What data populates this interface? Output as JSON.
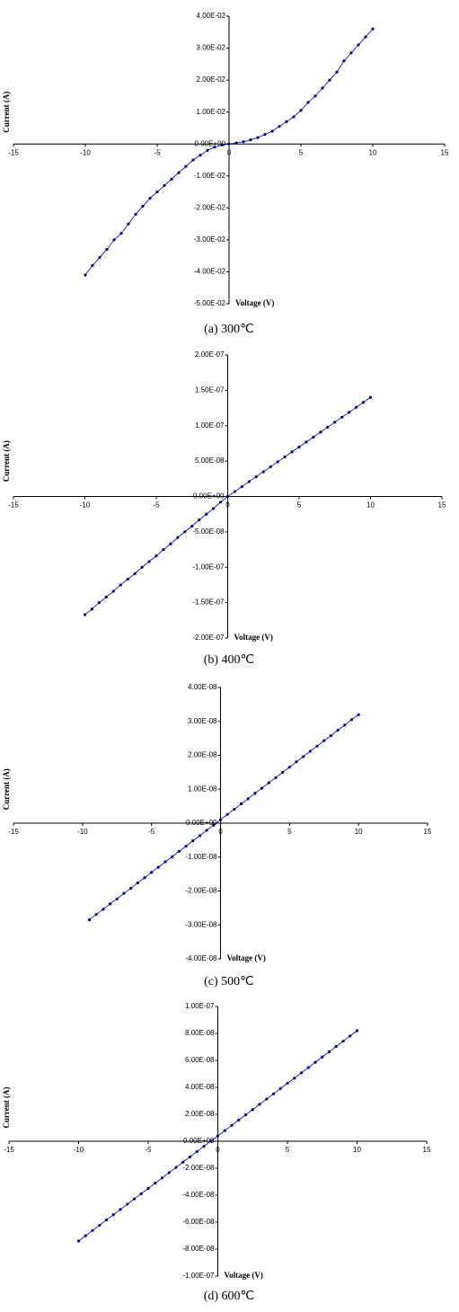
{
  "chart_data": [
    {
      "type": "line",
      "caption": "(a) 300℃",
      "xlabel": "Voltage (V)",
      "ylabel": "Current (A)",
      "color": "#000080",
      "xlim": [
        -15,
        15
      ],
      "ylim": [
        -0.05,
        0.04
      ],
      "xticks": [
        -15,
        -10,
        -5,
        0,
        5,
        10,
        15
      ],
      "yticks": [
        {
          "value": 0.04,
          "label": "4.00E-02"
        },
        {
          "value": 0.03,
          "label": "3.00E-02"
        },
        {
          "value": 0.02,
          "label": "2.00E-02"
        },
        {
          "value": 0.01,
          "label": "1.00E-02"
        },
        {
          "value": 0,
          "label": "0.00E+00"
        },
        {
          "value": -0.01,
          "label": "-1.00E-02"
        },
        {
          "value": -0.02,
          "label": "-2.00E-02"
        },
        {
          "value": -0.03,
          "label": "-3.00E-02"
        },
        {
          "value": -0.04,
          "label": "-4.00E-02"
        },
        {
          "value": -0.05,
          "label": "-5.00E-02"
        }
      ],
      "x": [
        -10,
        -9.5,
        -9,
        -8.5,
        -8,
        -7.5,
        -7,
        -6.5,
        -6,
        -5.5,
        -5,
        -4.5,
        -4,
        -3.5,
        -3,
        -2.5,
        -2,
        -1.5,
        -1,
        -0.5,
        0,
        0.5,
        1,
        1.5,
        2,
        2.5,
        3,
        3.5,
        4,
        4.5,
        5,
        5.5,
        6,
        6.5,
        7,
        7.5,
        8,
        8.5,
        9,
        9.5,
        10
      ],
      "values": [
        -0.041,
        -0.038,
        -0.0355,
        -0.033,
        -0.03,
        -0.028,
        -0.025,
        -0.022,
        -0.0195,
        -0.017,
        -0.015,
        -0.013,
        -0.011,
        -0.009,
        -0.007,
        -0.005,
        -0.0035,
        -0.002,
        -0.001,
        -0.0003,
        0,
        0.0003,
        0.0007,
        0.0013,
        0.002,
        0.003,
        0.004,
        0.0055,
        0.007,
        0.0085,
        0.0105,
        0.013,
        0.015,
        0.0175,
        0.02,
        0.0225,
        0.026,
        0.0285,
        0.031,
        0.0335,
        0.036
      ]
    },
    {
      "type": "line",
      "caption": "(b) 400℃",
      "xlabel": "Voltage (V)",
      "ylabel": "Current (A)",
      "color": "#000080",
      "xlim": [
        -15,
        15
      ],
      "ylim": [
        -2e-07,
        2e-07
      ],
      "xticks": [
        -15,
        -10,
        -5,
        0,
        5,
        10,
        15
      ],
      "yticks": [
        {
          "value": 2e-07,
          "label": "2.00E-07"
        },
        {
          "value": 1.5e-07,
          "label": "1.50E-07"
        },
        {
          "value": 1e-07,
          "label": "1.00E-07"
        },
        {
          "value": 5e-08,
          "label": "5.00E-08"
        },
        {
          "value": 0,
          "label": "0.00E+00"
        },
        {
          "value": -5e-08,
          "label": "-5.00E-08"
        },
        {
          "value": -1e-07,
          "label": "-1.00E-07"
        },
        {
          "value": -1.5e-07,
          "label": "-1.50E-07"
        },
        {
          "value": -2e-07,
          "label": "-2.00E-07"
        }
      ],
      "x": [
        -10,
        -9.5,
        -9,
        -8.5,
        -8,
        -7.5,
        -7,
        -6.5,
        -6,
        -5.5,
        -5,
        -4.5,
        -4,
        -3.5,
        -3,
        -2.5,
        -2,
        -1.5,
        -1,
        -0.5,
        0,
        0.5,
        1,
        1.5,
        2,
        2.5,
        3,
        3.5,
        4,
        4.5,
        5,
        5.5,
        6,
        6.5,
        7,
        7.5,
        8,
        8.5,
        9,
        9.5,
        10
      ],
      "values": [
        -1.67e-07,
        -1.59e-07,
        -1.5e-07,
        -1.42e-07,
        -1.34e-07,
        -1.25e-07,
        -1.17e-07,
        -1.09e-07,
        -1e-07,
        -9.2e-08,
        -8.4e-08,
        -7.5e-08,
        -6.7e-08,
        -5.8e-08,
        -5e-08,
        -4.2e-08,
        -3.3e-08,
        -2.5e-08,
        -1.7e-08,
        -8e-09,
        0,
        7e-09,
        1.4e-08,
        2.1e-08,
        2.8e-08,
        3.5e-08,
        4.2e-08,
        4.9e-08,
        5.6e-08,
        6.3e-08,
        7e-08,
        7.7e-08,
        8.4e-08,
        9.1e-08,
        9.8e-08,
        1.05e-07,
        1.12e-07,
        1.19e-07,
        1.26e-07,
        1.33e-07,
        1.4e-07
      ]
    },
    {
      "type": "line",
      "caption": "(c) 500℃",
      "xlabel": "Voltage (V)",
      "ylabel": "Current (A)",
      "color": "#000080",
      "xlim": [
        -15,
        15
      ],
      "ylim": [
        -4e-08,
        4e-08
      ],
      "xticks": [
        -15,
        -10,
        -5,
        0,
        5,
        10,
        15
      ],
      "yticks": [
        {
          "value": 4e-08,
          "label": "4.00E-08"
        },
        {
          "value": 3e-08,
          "label": "3.00E-08"
        },
        {
          "value": 2e-08,
          "label": "2.00E-08"
        },
        {
          "value": 1e-08,
          "label": "1.00E-08"
        },
        {
          "value": 0,
          "label": "0.00E+00"
        },
        {
          "value": -1e-08,
          "label": "-1.00E-08"
        },
        {
          "value": -2e-08,
          "label": "-2.00E-08"
        },
        {
          "value": -3e-08,
          "label": "-3.00E-08"
        },
        {
          "value": -4e-08,
          "label": "-4.00E-08"
        }
      ],
      "x": [
        -9.5,
        -9,
        -8.5,
        -8,
        -7.5,
        -7,
        -6.5,
        -6,
        -5.5,
        -5,
        -4.5,
        -4,
        -3.5,
        -3,
        -2.5,
        -2,
        -1.5,
        -1,
        -0.5,
        0,
        0.5,
        1,
        1.5,
        2,
        2.5,
        3,
        3.5,
        4,
        4.5,
        5,
        5.5,
        6,
        6.5,
        7,
        7.5,
        8,
        8.5,
        9,
        9.5,
        10
      ],
      "values": [
        -2.85e-08,
        -2.69e-08,
        -2.54e-08,
        -2.38e-08,
        -2.23e-08,
        -2.07e-08,
        -1.92e-08,
        -1.76e-08,
        -1.61e-08,
        -1.45e-08,
        -1.3e-08,
        -1.14e-08,
        -9.9e-09,
        -8.3e-09,
        -6.8e-09,
        -5.2e-09,
        -3.7e-09,
        -2.1e-09,
        -6e-10,
        1e-09,
        2.6e-09,
        4.1e-09,
        5.7e-09,
        7.2e-09,
        8.8e-09,
        1.03e-08,
        1.19e-08,
        1.34e-08,
        1.5e-08,
        1.65e-08,
        1.81e-08,
        1.96e-08,
        2.12e-08,
        2.27e-08,
        2.43e-08,
        2.58e-08,
        2.74e-08,
        2.89e-08,
        3.05e-08,
        3.2e-08
      ]
    },
    {
      "type": "line",
      "caption": "(d) 600℃",
      "xlabel": "Voltage (V)",
      "ylabel": "Current (A)",
      "color": "#000080",
      "xlim": [
        -15,
        15
      ],
      "ylim": [
        -1e-07,
        1e-07
      ],
      "xticks": [
        -15,
        -10,
        -5,
        0,
        5,
        10,
        15
      ],
      "yticks": [
        {
          "value": 1e-07,
          "label": "1.00E-07"
        },
        {
          "value": 8e-08,
          "label": "8.00E-08"
        },
        {
          "value": 6e-08,
          "label": "6.00E-08"
        },
        {
          "value": 4e-08,
          "label": "4.00E-08"
        },
        {
          "value": 2e-08,
          "label": "2.00E-08"
        },
        {
          "value": 0,
          "label": "0.00E+00"
        },
        {
          "value": -2e-08,
          "label": "-2.00E-08"
        },
        {
          "value": -4e-08,
          "label": "-4.00E-08"
        },
        {
          "value": -6e-08,
          "label": "-6.00E-08"
        },
        {
          "value": -8e-08,
          "label": "-8.00E-08"
        },
        {
          "value": -1e-07,
          "label": "-1.00E-07"
        }
      ],
      "x": [
        -10,
        -9.5,
        -9,
        -8.5,
        -8,
        -7.5,
        -7,
        -6.5,
        -6,
        -5.5,
        -5,
        -4.5,
        -4,
        -3.5,
        -3,
        -2.5,
        -2,
        -1.5,
        -1,
        -0.5,
        0,
        0.5,
        1,
        1.5,
        2,
        2.5,
        3,
        3.5,
        4,
        4.5,
        5,
        5.5,
        6,
        6.5,
        7,
        7.5,
        8,
        8.5,
        9,
        9.5,
        10
      ],
      "values": [
        -7.4e-08,
        -7.01e-08,
        -6.62e-08,
        -6.23e-08,
        -5.84e-08,
        -5.45e-08,
        -5.06e-08,
        -4.67e-08,
        -4.28e-08,
        -3.89e-08,
        -3.5e-08,
        -3.11e-08,
        -2.72e-08,
        -2.33e-08,
        -1.94e-08,
        -1.55e-08,
        -1.16e-08,
        -7.7e-09,
        -3.8e-09,
        1e-10,
        4e-09,
        7.9e-09,
        1.18e-08,
        1.57e-08,
        1.96e-08,
        2.35e-08,
        2.74e-08,
        3.13e-08,
        3.52e-08,
        3.91e-08,
        4.3e-08,
        4.69e-08,
        5.08e-08,
        5.47e-08,
        5.86e-08,
        6.25e-08,
        6.64e-08,
        7.03e-08,
        7.42e-08,
        7.81e-08,
        8.2e-08
      ]
    }
  ]
}
